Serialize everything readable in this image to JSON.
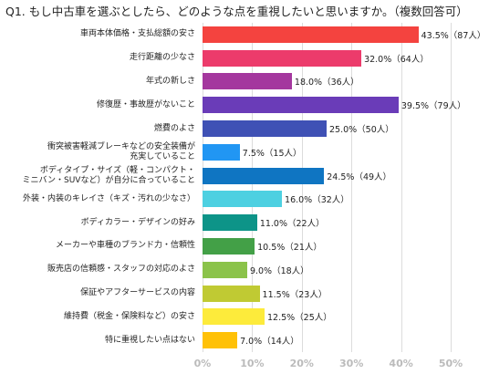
{
  "chart_data": {
    "type": "bar",
    "orientation": "horizontal",
    "title": "Q1. もし中古車を選ぶとしたら、どのような点を重視したいと思いますか。（複数回答可）",
    "categories": [
      "車両本体価格・支払総額の安さ",
      "走行距離の少なさ",
      "年式の新しさ",
      "修復歴・事故歴がないこと",
      "燃費のよさ",
      "衝突被害軽減ブレーキなどの安全装備が\n充実していること",
      "ボディタイプ・サイズ（軽・コンパクト・\nミニバン・SUVなど）が自分に合っていること",
      "外装・内装のキレイさ（キズ・汚れの少なさ）",
      "ボディカラー・デザインの好み",
      "メーカーや車種のブランド力・信頼性",
      "販売店の信頼感・スタッフの対応のよさ",
      "保証やアフターサービスの内容",
      "維持費（税金・保険料など）の安さ",
      "特に重視したい点はない"
    ],
    "values": [
      43.5,
      32.0,
      18.0,
      39.5,
      25.0,
      7.5,
      24.5,
      16.0,
      11.0,
      10.5,
      9.0,
      11.5,
      12.5,
      7.0
    ],
    "value_labels": [
      "43.5%（87人）",
      "32.0%（64人）",
      "18.0%（36人）",
      "39.5%（79人）",
      "25.0%（50人）",
      "7.5%（15人）",
      "24.5%（49人）",
      "16.0%（32人）",
      "11.0%（22人）",
      "10.5%（21人）",
      "9.0%（18人）",
      "11.5%（23人）",
      "12.5%（25人）",
      "7.0%（14人）"
    ],
    "colors": [
      "#f4433f",
      "#ec3b6b",
      "#a4379e",
      "#6a3cb8",
      "#3f51b5",
      "#2196f3",
      "#0f75c2",
      "#4dd0e1",
      "#0d9488",
      "#43a047",
      "#8bc34a",
      "#c0ca33",
      "#fdeb3b",
      "#ffc107"
    ],
    "xlim": [
      0,
      50
    ],
    "xticks": [
      {
        "value": 0,
        "label": "0%"
      },
      {
        "value": 10,
        "label": "10%"
      },
      {
        "value": 20,
        "label": "20%"
      },
      {
        "value": 30,
        "label": "30%"
      },
      {
        "value": 40,
        "label": "40%"
      },
      {
        "value": 50,
        "label": "50%"
      }
    ],
    "grid": true
  }
}
